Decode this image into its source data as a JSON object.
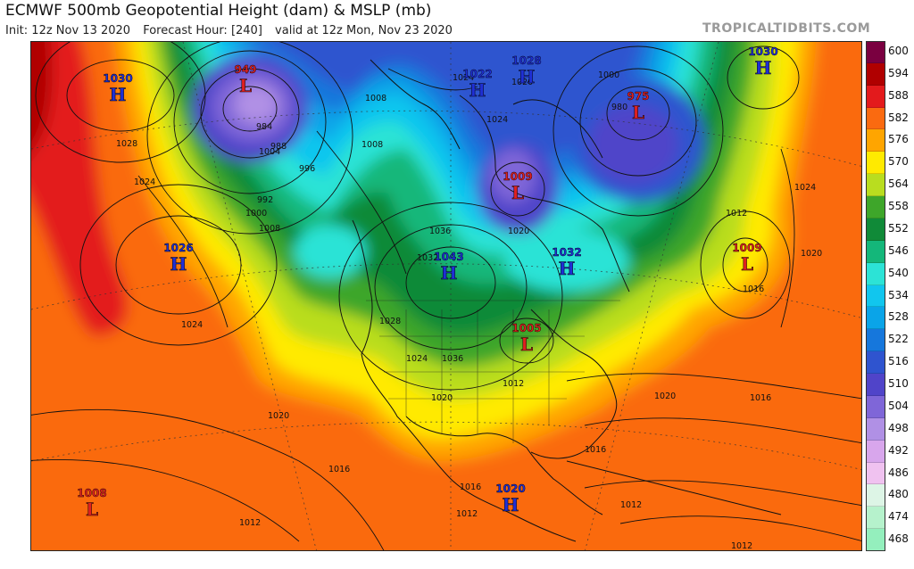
{
  "header": {
    "title": "ECMWF 500mb Geopotential Height (dam) & MSLP (mb)",
    "init": "Init: 12z Nov 13 2020",
    "forecast_hour": "Forecast Hour: [240]",
    "valid": "valid at 12z Mon, Nov 23 2020",
    "brand": "TROPICALTIDBITS.COM"
  },
  "colorbar": {
    "levels": [
      {
        "label": "600",
        "color": "#7a0040"
      },
      {
        "label": "594",
        "color": "#b00000"
      },
      {
        "label": "588",
        "color": "#e31a1c"
      },
      {
        "label": "582",
        "color": "#fa6a10"
      },
      {
        "label": "576",
        "color": "#ffa500"
      },
      {
        "label": "570",
        "color": "#ffea00"
      },
      {
        "label": "564",
        "color": "#b9dd1f"
      },
      {
        "label": "558",
        "color": "#3ea62a"
      },
      {
        "label": "552",
        "color": "#108a38"
      },
      {
        "label": "546",
        "color": "#14b77a"
      },
      {
        "label": "540",
        "color": "#2ce3d6"
      },
      {
        "label": "534",
        "color": "#11c6ee"
      },
      {
        "label": "528",
        "color": "#0aa4e8"
      },
      {
        "label": "522",
        "color": "#1677dc"
      },
      {
        "label": "516",
        "color": "#2f54cf"
      },
      {
        "label": "510",
        "color": "#5044c9"
      },
      {
        "label": "504",
        "color": "#7f66d8"
      },
      {
        "label": "498",
        "color": "#b090e5"
      },
      {
        "label": "492",
        "color": "#d8a6ec"
      },
      {
        "label": "486",
        "color": "#f0c2f0"
      },
      {
        "label": "480",
        "color": "#ddf5e6"
      },
      {
        "label": "474",
        "color": "#b6f2cc"
      },
      {
        "label": "468",
        "color": "#94efbd"
      }
    ]
  },
  "pressure_centers": [
    {
      "kind": "H",
      "value": "1030",
      "color": "#1f2fd6"
    },
    {
      "kind": "L",
      "value": "949",
      "color": "#e02020"
    },
    {
      "kind": "H",
      "value": "1026",
      "color": "#1f2fd6"
    },
    {
      "kind": "H",
      "value": "1043",
      "color": "#1f2fd6"
    },
    {
      "kind": "H",
      "value": "1032",
      "color": "#1f2fd6"
    },
    {
      "kind": "L",
      "value": "1009",
      "color": "#e02020"
    },
    {
      "kind": "L",
      "value": "1005",
      "color": "#e02020"
    },
    {
      "kind": "L",
      "value": "975",
      "color": "#e02020"
    },
    {
      "kind": "H",
      "value": "1028",
      "color": "#1f2fd6"
    },
    {
      "kind": "H",
      "value": "1022",
      "color": "#1f2fd6"
    },
    {
      "kind": "H",
      "value": "1030",
      "color": "#1f2fd6"
    },
    {
      "kind": "L",
      "value": "1009",
      "color": "#e02020"
    },
    {
      "kind": "H",
      "value": "1020",
      "color": "#1f2fd6"
    },
    {
      "kind": "L",
      "value": "1008",
      "color": "#e02020"
    }
  ],
  "isobar_labels": [
    "1028",
    "1024",
    "1024",
    "1020",
    "1016",
    "1012",
    "1008",
    "1004",
    "1000",
    "996",
    "992",
    "988",
    "984",
    "976",
    "980",
    "1000",
    "1008",
    "1012",
    "1016",
    "1020",
    "1024",
    "1020",
    "1016",
    "1012",
    "1032",
    "1036",
    "1024",
    "1020",
    "1016",
    "1012",
    "1008",
    "1020",
    "1016",
    "1012",
    "1012",
    "1024",
    "1028",
    "1020",
    "1036",
    "1024"
  ]
}
